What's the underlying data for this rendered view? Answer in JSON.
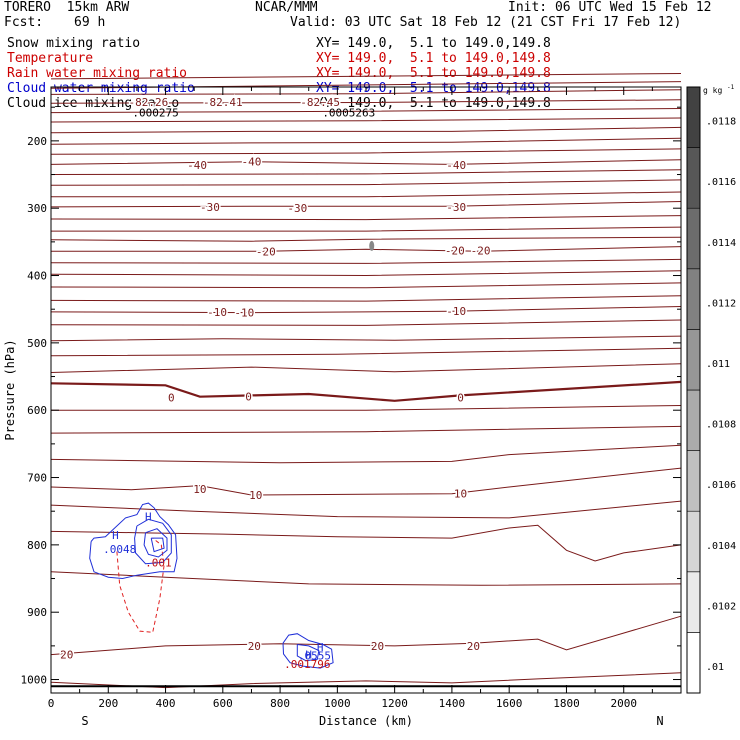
{
  "header": {
    "model": "TORERO  15km ARW",
    "center": "NCAR/MMM",
    "init": "Init: 06 UTC Wed 15 Feb 12",
    "fcst_label": "Fcst:",
    "fcst_value": "69 h",
    "valid": "Valid: 03 UTC Sat 18 Feb 12 (21 CST Fri 17 Feb 12)"
  },
  "fields": [
    {
      "name": "Snow mixing ratio",
      "xy": "XY= 149.0,  5.1 to 149.0,149.8",
      "color": "#000000"
    },
    {
      "name": "Temperature",
      "xy": "XY= 149.0,  5.1 to 149.0,149.8",
      "color": "#cc0000"
    },
    {
      "name": "Rain water mixing ratio",
      "xy": "XY= 149.0,  5.1 to 149.0,149.8",
      "color": "#cc0000"
    },
    {
      "name": "Cloud water mixing ratio",
      "xy": "XY= 149.0,  5.1 to 149.0,149.8",
      "color": "#0000cc"
    },
    {
      "name": "Cloud ice mixing ratio",
      "xy": "XY= 149.0,  5.1 to 149.0,149.8",
      "color": "#000000"
    }
  ],
  "chart_data": {
    "type": "contour",
    "xlabel": "Distance (km)",
    "ylabel": "Pressure (hPa)",
    "xlim": [
      0,
      2200
    ],
    "ylim": [
      1020,
      120
    ],
    "xticks": [
      0,
      200,
      400,
      600,
      800,
      1000,
      1200,
      1400,
      1600,
      1800,
      2000
    ],
    "yticks": [
      200,
      300,
      400,
      500,
      600,
      700,
      800,
      900,
      1000
    ],
    "x_end_labels": [
      "S",
      "N"
    ],
    "colorbar": {
      "unit": "g kg",
      "unit_exponent": "-1",
      "ticks": [
        ".01",
        ".0102",
        ".0104",
        ".0106",
        ".0108",
        ".011",
        ".0112",
        ".0114",
        ".0116",
        ".0118"
      ]
    },
    "temperature_contour_labels": [
      {
        "value": "-82.26",
        "x": 340,
        "p": 142
      },
      {
        "value": "-82.41",
        "x": 600,
        "p": 142
      },
      {
        "value": "-82.45",
        "x": 940,
        "p": 142
      },
      {
        "value": "-40",
        "x": 510,
        "p": 236
      },
      {
        "value": "-40",
        "x": 700,
        "p": 231
      },
      {
        "value": "-40",
        "x": 1415,
        "p": 236
      },
      {
        "value": "-30",
        "x": 555,
        "p": 298
      },
      {
        "value": "-30",
        "x": 860,
        "p": 300
      },
      {
        "value": "-30",
        "x": 1415,
        "p": 298
      },
      {
        "value": "-20",
        "x": 750,
        "p": 364
      },
      {
        "value": "-20",
        "x": 1410,
        "p": 363
      },
      {
        "value": "-20",
        "x": 1500,
        "p": 363
      },
      {
        "value": "-10",
        "x": 580,
        "p": 454
      },
      {
        "value": "-10",
        "x": 675,
        "p": 455
      },
      {
        "value": "-10",
        "x": 1415,
        "p": 453
      },
      {
        "value": "0",
        "x": 420,
        "p": 581
      },
      {
        "value": "0",
        "x": 690,
        "p": 580
      },
      {
        "value": "0",
        "x": 1430,
        "p": 581
      },
      {
        "value": "10",
        "x": 520,
        "p": 717
      },
      {
        "value": "10",
        "x": 715,
        "p": 726
      },
      {
        "value": "10",
        "x": 1430,
        "p": 724
      },
      {
        "value": "20",
        "x": 55,
        "p": 963
      },
      {
        "value": "20",
        "x": 710,
        "p": 950
      },
      {
        "value": "20",
        "x": 1140,
        "p": 950
      },
      {
        "value": "20",
        "x": 1475,
        "p": 950
      }
    ],
    "annotations": [
      {
        "text": ".000275",
        "x": 365,
        "p": 158
      },
      {
        "text": ".0005263",
        "x": 1040,
        "p": 158
      },
      {
        "text": "H",
        "x": 225,
        "p": 785
      },
      {
        "text": ".0048",
        "x": 240,
        "p": 806
      },
      {
        "text": "H",
        "x": 340,
        "p": 758
      },
      {
        "text": ".001",
        "x": 375,
        "p": 826
      },
      {
        "text": "H",
        "x": 940,
        "p": 952
      },
      {
        "text": "H",
        "x": 900,
        "p": 963
      },
      {
        "text": ".0555",
        "x": 920,
        "p": 964
      },
      {
        "text": ".001796",
        "x": 895,
        "p": 977
      }
    ]
  }
}
